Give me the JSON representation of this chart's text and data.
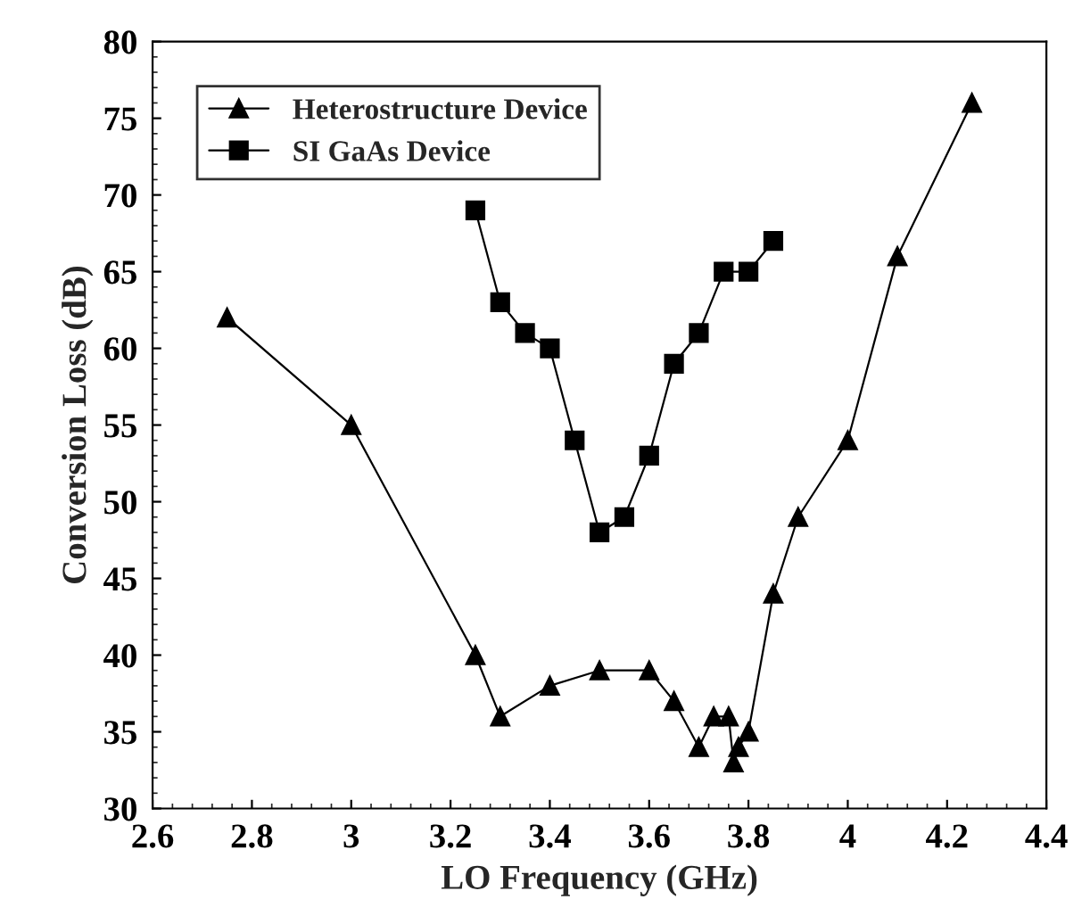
{
  "chart_data": {
    "type": "line",
    "xlabel": "LO Frequency (GHz)",
    "ylabel": "Conversion Loss (dB)",
    "xlim": [
      2.6,
      4.4
    ],
    "xticks": [
      2.6,
      2.8,
      3,
      3.2,
      3.4,
      3.6,
      3.8,
      4,
      4.2,
      4.4
    ],
    "ylim": [
      30,
      80
    ],
    "yticks": [
      30,
      35,
      40,
      45,
      50,
      55,
      60,
      65,
      70,
      75,
      80
    ],
    "grid": false,
    "legend": "top left",
    "line_style": "solid",
    "series": [
      {
        "name": "Heterostructure Device",
        "color": "#000000",
        "marker": "triangle",
        "x": [
          2.75,
          3.0,
          3.25,
          3.3,
          3.4,
          3.5,
          3.6,
          3.65,
          3.7,
          3.73,
          3.76,
          3.77,
          3.78,
          3.8,
          3.85,
          3.9,
          4.0,
          4.1,
          4.25
        ],
        "values": [
          62,
          55,
          40,
          36,
          38,
          39,
          39,
          37,
          34,
          36,
          36,
          33,
          34,
          35,
          44,
          49,
          54,
          66,
          76
        ]
      },
      {
        "name": "SI GaAs Device",
        "color": "#000000",
        "marker": "square",
        "x": [
          3.25,
          3.3,
          3.35,
          3.4,
          3.45,
          3.5,
          3.55,
          3.6,
          3.65,
          3.7,
          3.75,
          3.8,
          3.85
        ],
        "values": [
          69,
          63,
          61,
          60,
          54,
          48,
          49,
          53,
          59,
          61,
          65,
          65,
          67
        ]
      }
    ]
  }
}
